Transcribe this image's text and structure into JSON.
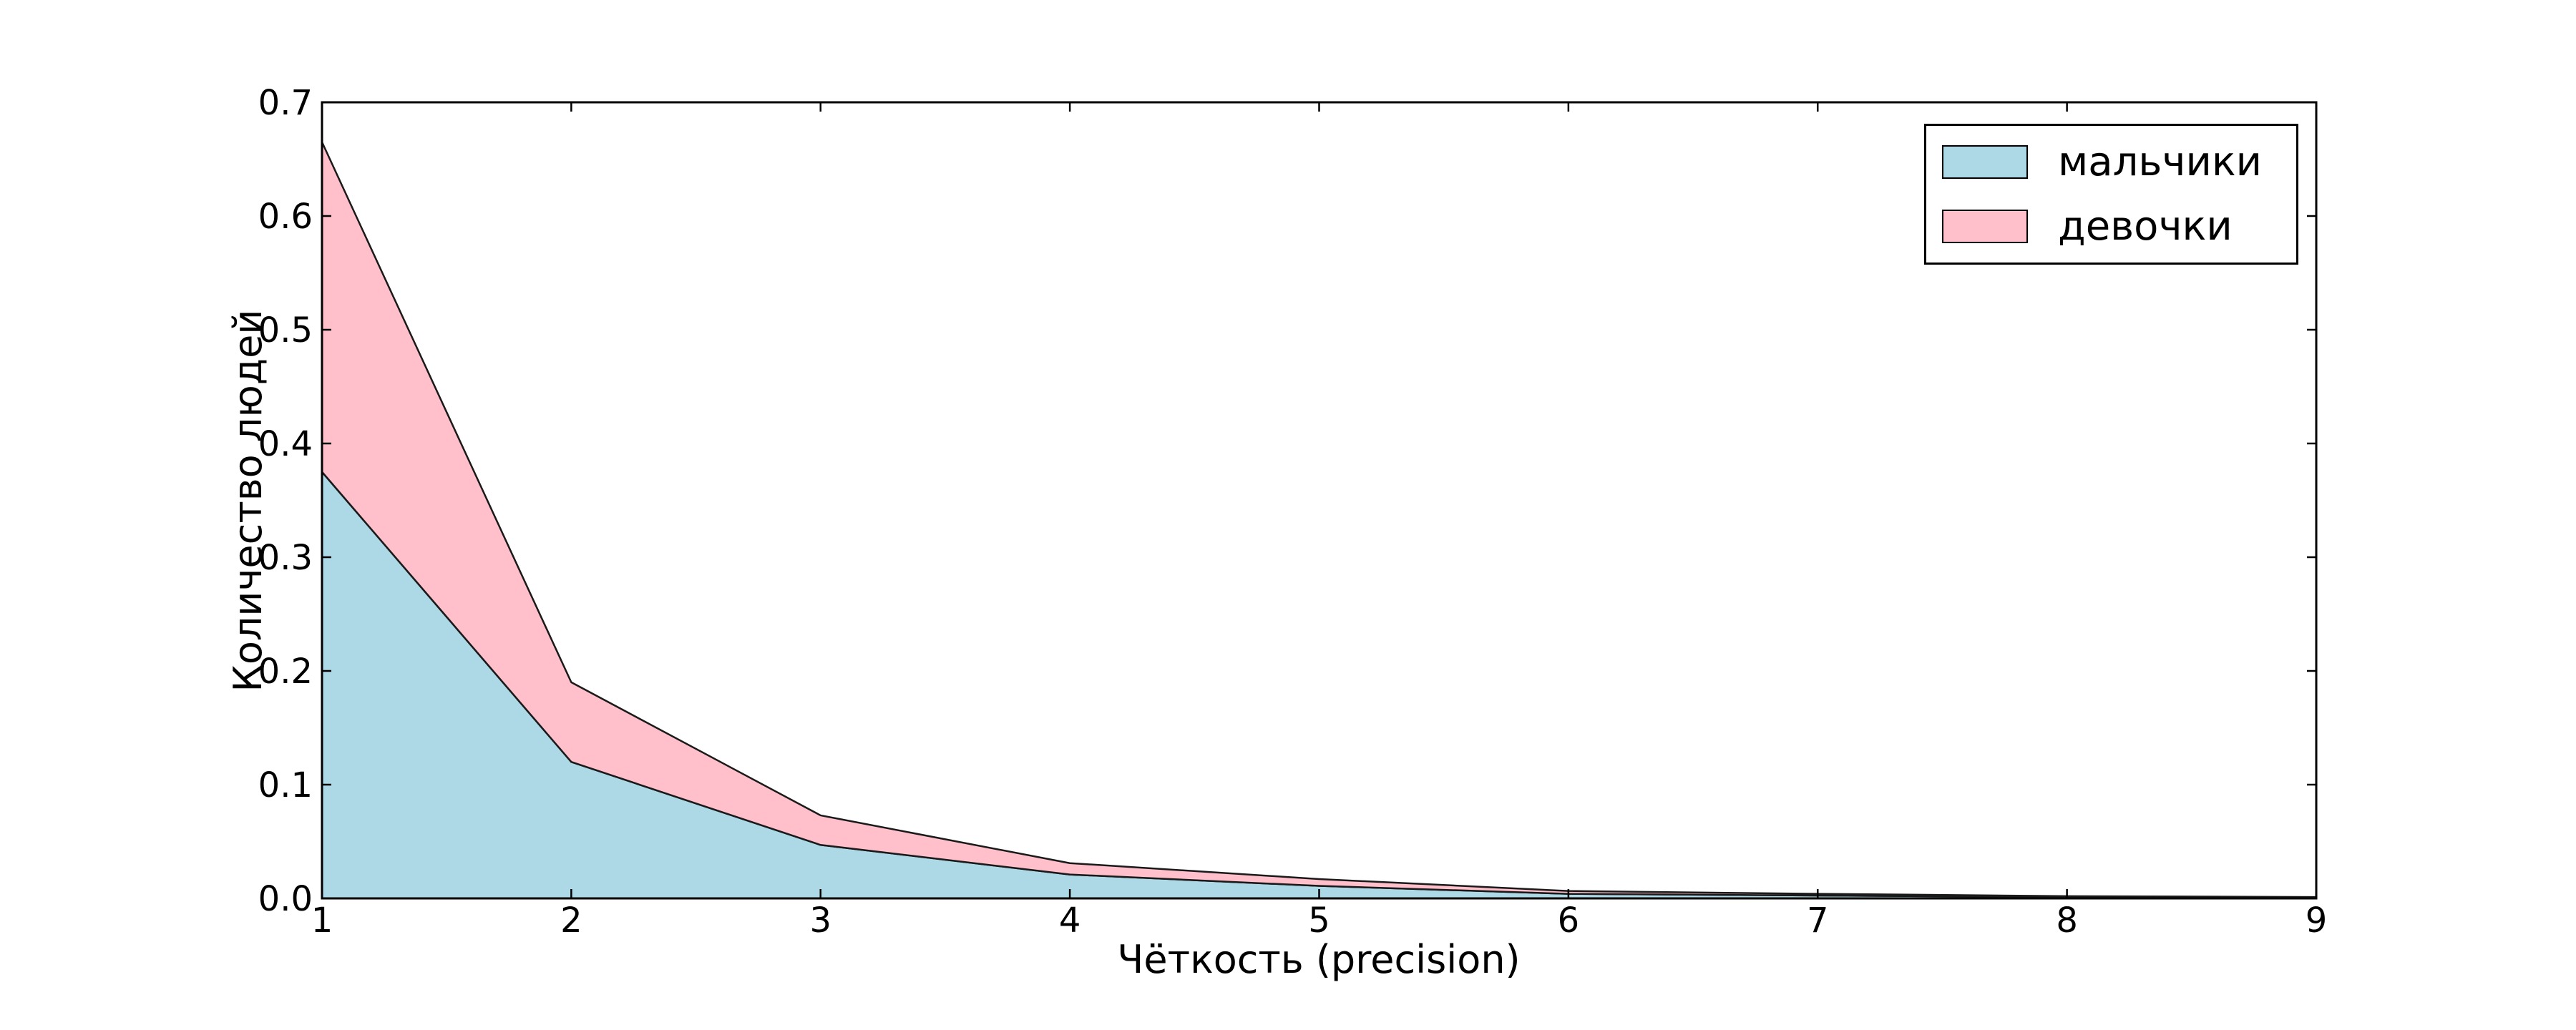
{
  "figure": {
    "background": "#ffffff"
  },
  "chart_data": {
    "type": "area",
    "stacked": true,
    "title": "",
    "xlabel": "Чёткость (precision)",
    "ylabel": "Количество людей",
    "xlim": [
      1,
      9
    ],
    "ylim": [
      0,
      0.7
    ],
    "grid": false,
    "x": [
      1,
      2,
      3,
      4,
      5,
      6,
      7,
      8,
      9
    ],
    "x_tick_labels": [
      "1",
      "2",
      "3",
      "4",
      "5",
      "6",
      "7",
      "8",
      "9"
    ],
    "y_ticks": [
      0.0,
      0.1,
      0.2,
      0.3,
      0.4,
      0.5,
      0.6,
      0.7
    ],
    "y_tick_labels": [
      "0.0",
      "0.1",
      "0.2",
      "0.3",
      "0.4",
      "0.5",
      "0.6",
      "0.7"
    ],
    "series": [
      {
        "name": "мальчики",
        "color": "#add8e6",
        "values": [
          0.375,
          0.12,
          0.047,
          0.021,
          0.011,
          0.004,
          0.0025,
          0.0013,
          0.0008
        ]
      },
      {
        "name": "девочки",
        "color": "#ffc0cb",
        "values": [
          0.29,
          0.07,
          0.026,
          0.01,
          0.006,
          0.0025,
          0.0015,
          0.0007,
          0.0004
        ]
      }
    ],
    "edge_color": "#1a1a1a",
    "spine_color": "#000000",
    "legend": {
      "position": "upper right",
      "entries": [
        "мальчики",
        "девочки"
      ]
    }
  }
}
